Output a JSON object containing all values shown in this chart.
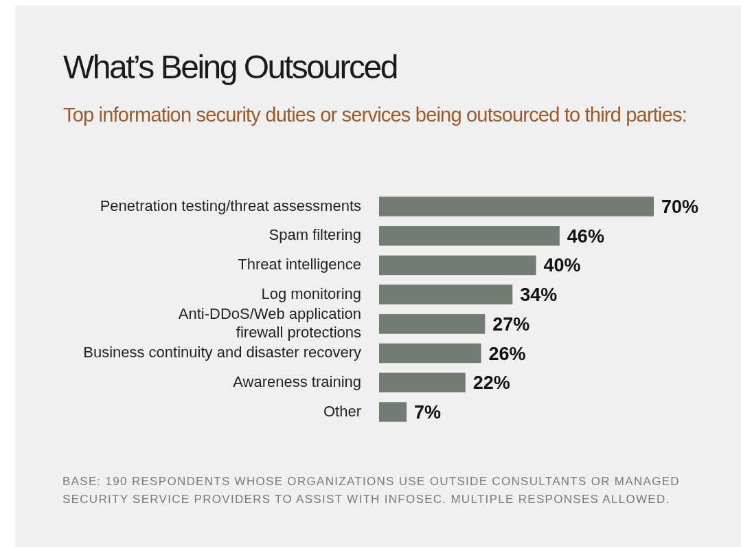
{
  "chart_data": {
    "type": "bar",
    "orientation": "horizontal",
    "title": "What’s Being Outsourced",
    "subtitle": "Top information security duties or services being outsourced to third parties:",
    "categories": [
      "Penetration testing/threat assessments",
      "Spam filtering",
      "Threat intelligence",
      "Log monitoring",
      "Anti-DDoS/Web application firewall protections",
      "Business continuity and disaster recovery",
      "Awareness training",
      "Other"
    ],
    "values": [
      70,
      46,
      40,
      34,
      27,
      26,
      22,
      7
    ],
    "value_labels": [
      "70%",
      "46%",
      "40%",
      "34%",
      "27%",
      "26%",
      "22%",
      "7%"
    ],
    "color": "#727c72",
    "tick_labels": "y",
    "grid": false,
    "legend": false,
    "annotations": [
      "BASE: 190 RESPONDENTS WHOSE ORGANIZATIONS USE OUTSIDE CONSULTANTS OR MANAGED SECURITY SERVICE PROVIDERS TO ASSIST WITH INFOSEC. MULTIPLE RESPONSES ALLOWED."
    ]
  }
}
